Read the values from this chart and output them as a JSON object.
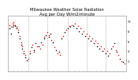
{
  "title": "Milwaukee Weather Solar Radiation\nAvg per Day W/m2/minute",
  "title_fontsize": 3.8,
  "background_color": "#ffffff",
  "plot_bg_color": "#ffffff",
  "grid_color": "#aaaaaa",
  "n_points": 80,
  "ylim": [
    0,
    11
  ],
  "yticks": [
    2,
    4,
    6,
    8,
    10
  ],
  "ytick_labels": [
    "2",
    "4",
    "6",
    "8",
    "10"
  ],
  "vline_positions": [
    13,
    26,
    40,
    53,
    66
  ],
  "dot_size": 1.2,
  "x_black": [
    0,
    1,
    2,
    3,
    4,
    5,
    6,
    7,
    8,
    9,
    10,
    11,
    12,
    14,
    15,
    17,
    18,
    20,
    22,
    24,
    25,
    27,
    28,
    30,
    32,
    34,
    36,
    38,
    40,
    42,
    44,
    46,
    48,
    50,
    52,
    54,
    56,
    58,
    60,
    62,
    64,
    66,
    68,
    70,
    72,
    74,
    76,
    78
  ],
  "y_black": [
    8.5,
    7.5,
    8.8,
    9.2,
    9.0,
    8.5,
    7.8,
    6.5,
    5.2,
    4.5,
    3.5,
    2.8,
    2.2,
    3.5,
    4.8,
    4.2,
    5.5,
    5.0,
    5.8,
    6.5,
    7.2,
    6.8,
    7.5,
    5.8,
    4.2,
    3.8,
    6.5,
    7.8,
    8.5,
    8.8,
    9.0,
    8.5,
    8.0,
    7.5,
    7.0,
    6.5,
    6.0,
    5.5,
    5.0,
    4.5,
    4.0,
    3.5,
    3.0,
    4.5,
    5.5,
    3.8,
    2.5,
    1.8
  ],
  "x_red": [
    0,
    1,
    2,
    3,
    4,
    5,
    6,
    7,
    8,
    9,
    10,
    11,
    13,
    14,
    16,
    17,
    19,
    21,
    23,
    24,
    26,
    27,
    29,
    31,
    33,
    35,
    37,
    39,
    41,
    43,
    45,
    47,
    49,
    51,
    53,
    55,
    57,
    59,
    61,
    63,
    65,
    67,
    69,
    71,
    73,
    75,
    77,
    79
  ],
  "y_red": [
    9.2,
    8.8,
    9.5,
    9.8,
    9.2,
    8.8,
    8.2,
    7.0,
    5.8,
    5.0,
    4.0,
    3.2,
    2.5,
    4.0,
    5.2,
    3.8,
    5.0,
    4.5,
    5.2,
    6.8,
    7.8,
    7.2,
    6.2,
    4.8,
    3.5,
    3.2,
    7.0,
    8.2,
    9.0,
    9.2,
    9.5,
    9.0,
    8.5,
    8.0,
    7.5,
    7.0,
    6.5,
    6.0,
    5.5,
    5.0,
    4.5,
    4.0,
    3.5,
    5.0,
    4.2,
    3.2,
    2.0,
    1.5
  ]
}
